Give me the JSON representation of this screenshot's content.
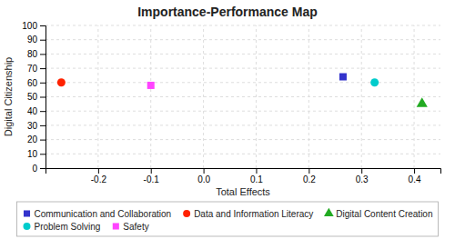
{
  "chart_data": {
    "type": "scatter",
    "title": "Importance-Performance Map",
    "xlabel": "Total Effects",
    "ylabel": "Digital Citizenship",
    "xlim": [
      -0.3,
      0.45
    ],
    "ylim": [
      0,
      100
    ],
    "xticks": [
      -0.2,
      -0.1,
      {
        "value": 0,
        "label": "0.0"
      },
      0.1,
      0.2,
      0.3,
      0.4
    ],
    "yticks": [
      0,
      10,
      20,
      30,
      40,
      50,
      60,
      70,
      80,
      90,
      100
    ],
    "grid": true,
    "legend": "bottom",
    "series": [
      {
        "name": "Communication and Collaboration",
        "color": "#3333CC",
        "marker": "square",
        "x": [
          0.265
        ],
        "values": [
          64
        ]
      },
      {
        "name": "Data and Information Literacy",
        "color": "#FF2200",
        "marker": "circle",
        "x": [
          -0.27
        ],
        "values": [
          60
        ]
      },
      {
        "name": "Digital Content Creation",
        "color": "#22AA22",
        "marker": "triangle",
        "x": [
          0.415
        ],
        "values": [
          45
        ]
      },
      {
        "name": "Problem Solving",
        "color": "#00CCCC",
        "marker": "circle",
        "x": [
          0.325
        ],
        "values": [
          60
        ]
      },
      {
        "name": "Safety",
        "color": "#FF44FF",
        "marker": "square",
        "x": [
          -0.1
        ],
        "values": [
          58
        ]
      }
    ]
  }
}
